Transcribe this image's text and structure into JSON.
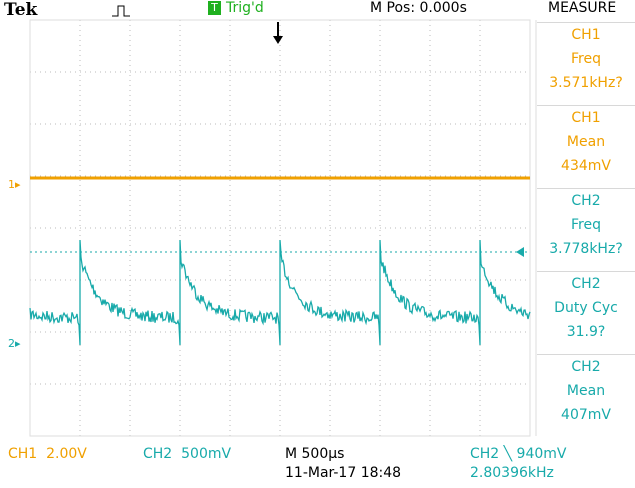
{
  "header": {
    "brand": "Tek",
    "trigger_status": "Trig'd",
    "trigger_icon": "T",
    "position": "M Pos: 0.000s",
    "menu_title": "MEASURE"
  },
  "markers": {
    "ch1": "1",
    "ch2": "2"
  },
  "measurements": [
    {
      "channel": "CH1",
      "label": "Freq",
      "value": "3.571kHz?"
    },
    {
      "channel": "CH1",
      "label": "Mean",
      "value": "434mV"
    },
    {
      "channel": "CH2",
      "label": "Freq",
      "value": "3.778kHz?"
    },
    {
      "channel": "CH2",
      "label": "Duty Cyc",
      "value": "31.9?"
    },
    {
      "channel": "CH2",
      "label": "Mean",
      "value": "407mV"
    }
  ],
  "footer": {
    "ch1": {
      "channel": "CH1",
      "scale": "2.00V"
    },
    "ch2": {
      "channel": "CH2",
      "scale": "500mV"
    },
    "timebase": "M 500µs",
    "datetime": "11-Mar-17 18:48",
    "trigger": {
      "channel": "CH2",
      "level": "╲ 940mV"
    },
    "frequency": "2.80396kHz"
  }
}
